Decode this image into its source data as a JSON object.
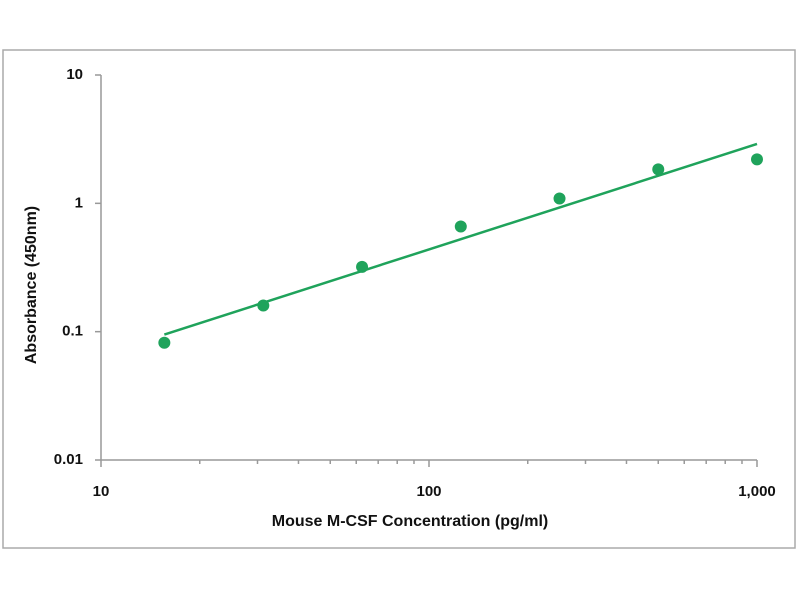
{
  "chart_data": {
    "type": "scatter",
    "x_label": "Mouse M-CSF Concentration (pg/ml)",
    "y_label": "Absorbance (450nm)",
    "xscale": "log",
    "yscale": "log",
    "xlim": [
      10,
      1000
    ],
    "ylim": [
      0.01,
      10
    ],
    "xticks": [
      10,
      100,
      {
        "value": 1000,
        "label": "1,000"
      }
    ],
    "xminorticks": [
      20,
      30,
      40,
      50,
      60,
      70,
      80,
      90,
      200,
      300,
      400,
      500,
      600,
      700,
      800,
      900
    ],
    "yticks": [
      0.01,
      0.1,
      1,
      10
    ],
    "series": [
      {
        "color": "#1fa35b",
        "x": [
          15.6,
          31.25,
          62.5,
          125,
          250,
          500,
          1000
        ],
        "values": [
          0.082,
          0.16,
          0.32,
          0.66,
          1.09,
          1.84,
          2.2
        ]
      }
    ],
    "fit": {
      "color": "#1fa35b",
      "x": [
        15.6,
        1000
      ],
      "values": [
        0.095,
        2.9
      ]
    }
  }
}
